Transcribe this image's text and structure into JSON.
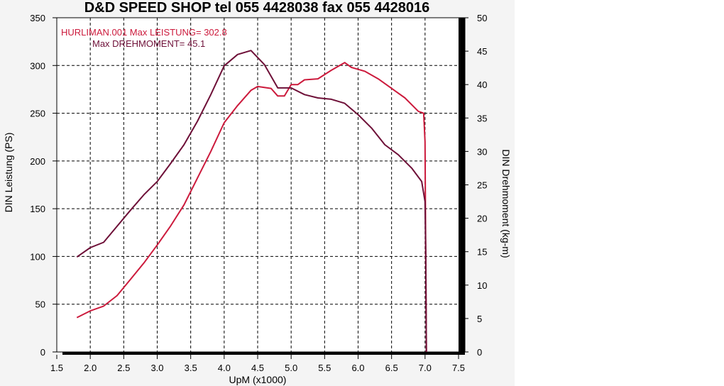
{
  "chart_data": {
    "type": "line",
    "title": "D&D SPEED SHOP  tel 055 4428038  fax 055 4428016",
    "xlabel": "UpM (x1000)",
    "ylabel_left": "DIN Leistung (PS)",
    "ylabel_right": "DIN Drehmoment (kg-m)",
    "xlim": [
      1.5,
      7.5
    ],
    "ylim_left": [
      0,
      350
    ],
    "ylim_right": [
      0,
      50
    ],
    "x_ticks": [
      "1.5",
      "2.0",
      "2.5",
      "3.0",
      "3.5",
      "4.0",
      "4.5",
      "5.0",
      "5.5",
      "6.0",
      "6.5",
      "7.0",
      "7.5"
    ],
    "y_ticks_left": [
      "0",
      "50",
      "100",
      "150",
      "200",
      "250",
      "300",
      "350"
    ],
    "y_ticks_right": [
      "0",
      "5",
      "10",
      "15",
      "20",
      "25",
      "30",
      "35",
      "40",
      "45",
      "50"
    ],
    "grid": true,
    "annotations": [
      {
        "text": "HURLIMAN.001  Max LEISTUNG= 302.8",
        "color": "#cc1a3c"
      },
      {
        "text": "Max DREHMOMENT= 45.1",
        "color": "#6e1038"
      }
    ],
    "series": [
      {
        "axis": "left",
        "color": "#cc1a3c",
        "points": [
          [
            1.8,
            36
          ],
          [
            2.0,
            43
          ],
          [
            2.2,
            48
          ],
          [
            2.4,
            59
          ],
          [
            2.6,
            76
          ],
          [
            2.8,
            93
          ],
          [
            3.0,
            112
          ],
          [
            3.2,
            132
          ],
          [
            3.4,
            154
          ],
          [
            3.6,
            182
          ],
          [
            3.8,
            210
          ],
          [
            4.0,
            240
          ],
          [
            4.2,
            258
          ],
          [
            4.4,
            274
          ],
          [
            4.5,
            278
          ],
          [
            4.7,
            276
          ],
          [
            4.8,
            268
          ],
          [
            4.9,
            268
          ],
          [
            5.0,
            280
          ],
          [
            5.1,
            280
          ],
          [
            5.2,
            285
          ],
          [
            5.4,
            286
          ],
          [
            5.6,
            295
          ],
          [
            5.8,
            303
          ],
          [
            5.9,
            298
          ],
          [
            6.1,
            294
          ],
          [
            6.3,
            286
          ],
          [
            6.5,
            276
          ],
          [
            6.7,
            266
          ],
          [
            6.9,
            252
          ],
          [
            6.98,
            250
          ],
          [
            7.0,
            220
          ],
          [
            7.01,
            100
          ],
          [
            7.02,
            0
          ]
        ]
      },
      {
        "axis": "right",
        "color": "#6e1038",
        "points": [
          [
            1.8,
            14.2
          ],
          [
            2.0,
            15.6
          ],
          [
            2.2,
            16.4
          ],
          [
            2.4,
            18.8
          ],
          [
            2.6,
            21.2
          ],
          [
            2.8,
            23.5
          ],
          [
            3.0,
            25.5
          ],
          [
            3.2,
            28.2
          ],
          [
            3.4,
            31.0
          ],
          [
            3.6,
            34.5
          ],
          [
            3.8,
            38.5
          ],
          [
            4.0,
            42.8
          ],
          [
            4.2,
            44.5
          ],
          [
            4.4,
            45.1
          ],
          [
            4.6,
            43.0
          ],
          [
            4.8,
            39.5
          ],
          [
            5.0,
            39.5
          ],
          [
            5.2,
            38.5
          ],
          [
            5.4,
            38.0
          ],
          [
            5.6,
            37.8
          ],
          [
            5.8,
            37.2
          ],
          [
            6.0,
            35.5
          ],
          [
            6.2,
            33.5
          ],
          [
            6.4,
            31.0
          ],
          [
            6.6,
            29.5
          ],
          [
            6.8,
            27.5
          ],
          [
            6.95,
            25.5
          ],
          [
            7.0,
            22.5
          ],
          [
            7.01,
            15.0
          ],
          [
            7.02,
            0
          ]
        ]
      }
    ]
  }
}
